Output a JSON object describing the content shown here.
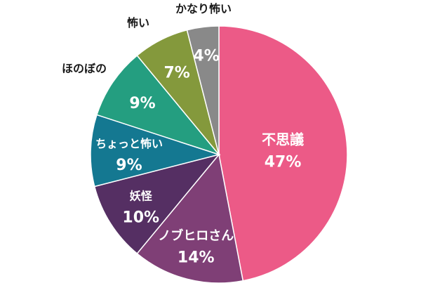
{
  "chart_data": {
    "type": "pie",
    "title": "",
    "start_angle_deg": 0,
    "direction": "clockwise",
    "slices": [
      {
        "label": "不思議",
        "value": 47,
        "value_label": "47%",
        "color": "#ec5a87",
        "label_inside": true
      },
      {
        "label": "ノブヒロさん",
        "value": 14,
        "value_label": "14%",
        "color": "#7f3f76",
        "label_inside": true
      },
      {
        "label": "妖怪",
        "value": 10,
        "value_label": "10%",
        "color": "#552f63",
        "label_inside": true
      },
      {
        "label": "ちょっと怖い",
        "value": 9,
        "value_label": "9%",
        "color": "#147891",
        "label_inside": true
      },
      {
        "label": "ほのぼの",
        "value": 9,
        "value_label": "9%",
        "color": "#249e80",
        "label_inside": false
      },
      {
        "label": "怖い",
        "value": 7,
        "value_label": "7%",
        "color": "#84993c",
        "label_inside": false
      },
      {
        "label": "かなり怖い",
        "value": 4,
        "value_label": "4%",
        "color": "#898989",
        "label_inside": false
      }
    ]
  }
}
